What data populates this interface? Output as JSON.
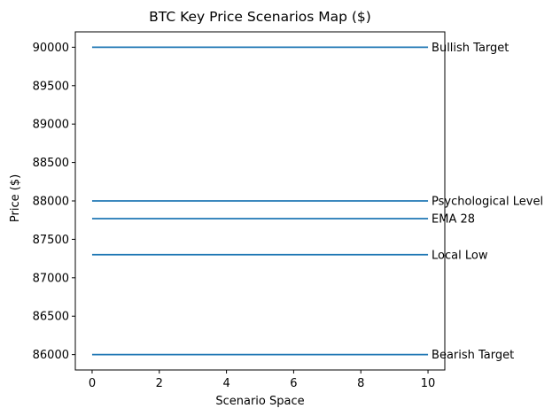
{
  "chart_data": {
    "type": "line",
    "title": "BTC Key Price Scenarios Map ($)",
    "xlabel": "Scenario Space",
    "ylabel": "Price ($)",
    "xlim": [
      -0.5,
      10.5
    ],
    "ylim": [
      85800,
      90200
    ],
    "x_ticks": [
      0,
      2,
      4,
      6,
      8,
      10
    ],
    "y_ticks": [
      86000,
      86500,
      87000,
      87500,
      88000,
      88500,
      89000,
      89500,
      90000
    ],
    "x_range": [
      0,
      10
    ],
    "grid": false,
    "line_color": "#1f77b4",
    "series": [
      {
        "name": "Bullish Target",
        "value": 90000
      },
      {
        "name": "Psychological Level",
        "value": 88000
      },
      {
        "name": "EMA 28",
        "value": 87770
      },
      {
        "name": "Local Low",
        "value": 87300
      },
      {
        "name": "Bearish Target",
        "value": 86000
      }
    ]
  }
}
